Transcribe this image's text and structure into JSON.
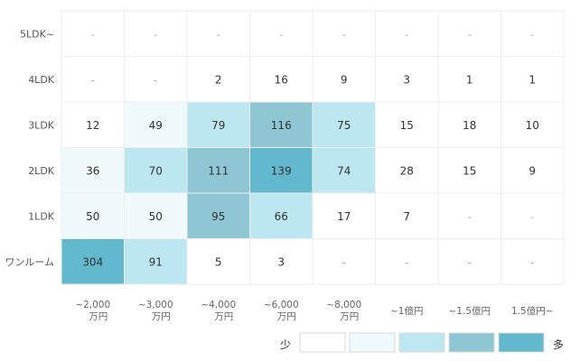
{
  "chart_data": {
    "type": "heatmap",
    "rows": [
      "5LDK~",
      "4LDK",
      "3LDK",
      "2LDK",
      "1LDK",
      "ワンルーム"
    ],
    "columns": [
      [
        "~2,000",
        "万円"
      ],
      [
        "~3,000",
        "万円"
      ],
      [
        "~4,000",
        "万円"
      ],
      [
        "~6,000",
        "万円"
      ],
      [
        "~8,000",
        "万円"
      ],
      [
        "~1億円"
      ],
      [
        "~1.5億円"
      ],
      [
        "1.5億円~"
      ]
    ],
    "values": [
      [
        null,
        null,
        null,
        null,
        null,
        null,
        null,
        null
      ],
      [
        null,
        null,
        2,
        16,
        9,
        3,
        1,
        1
      ],
      [
        12,
        49,
        79,
        116,
        75,
        15,
        18,
        10
      ],
      [
        36,
        70,
        111,
        139,
        74,
        28,
        15,
        9
      ],
      [
        50,
        50,
        95,
        66,
        17,
        7,
        null,
        null
      ],
      [
        304,
        91,
        5,
        3,
        null,
        null,
        null,
        null
      ]
    ],
    "levels": [
      [
        null,
        null,
        null,
        null,
        null,
        null,
        null,
        null
      ],
      [
        null,
        null,
        0,
        0,
        0,
        0,
        0,
        0
      ],
      [
        0,
        1,
        2,
        3,
        2,
        0,
        0,
        0
      ],
      [
        1,
        2,
        3,
        4,
        2,
        0,
        0,
        0
      ],
      [
        1,
        1,
        3,
        2,
        0,
        0,
        null,
        null
      ],
      [
        4,
        2,
        0,
        0,
        null,
        null,
        null,
        null
      ]
    ],
    "empty_label": "-",
    "legend": {
      "low_label": "少",
      "high_label": "多",
      "colors": [
        "#ffffff",
        "#f0fafd",
        "#bde7f0",
        "#8ec6d4",
        "#62b8cc"
      ]
    }
  }
}
